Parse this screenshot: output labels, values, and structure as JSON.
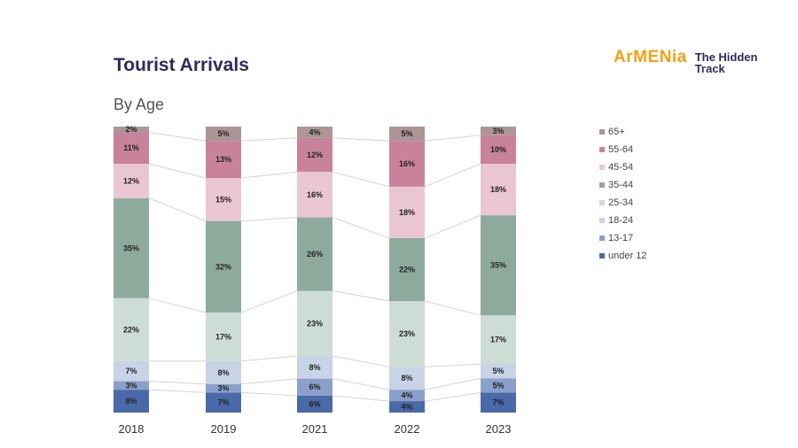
{
  "page": {
    "title": "Tourist Arrivals",
    "subtitle": "By Age",
    "logo_text": "ArMENia",
    "logo_tagline": "The Hidden Track"
  },
  "chart_data": {
    "type": "bar",
    "stacked": true,
    "title": "Tourist Arrivals",
    "subtitle": "By Age",
    "categories": [
      "2018",
      "2019",
      "2021",
      "2022",
      "2023"
    ],
    "ylim": [
      0,
      100
    ],
    "grid": false,
    "legend_position": "right",
    "series": [
      {
        "name": "under 12",
        "color": "#4a69a8",
        "values": [
          8,
          7,
          6,
          4,
          7
        ]
      },
      {
        "name": "13-17",
        "color": "#8aa0ca",
        "values": [
          3,
          3,
          6,
          4,
          5
        ]
      },
      {
        "name": "18-24",
        "color": "#c8d3e6",
        "values": [
          7,
          8,
          8,
          8,
          5
        ]
      },
      {
        "name": "25-34",
        "color": "#cddcd5",
        "values": [
          22,
          17,
          23,
          23,
          17
        ]
      },
      {
        "name": "35-44",
        "color": "#8eaa9d",
        "values": [
          35,
          32,
          26,
          22,
          35
        ]
      },
      {
        "name": "45-54",
        "color": "#eac6d2",
        "values": [
          12,
          15,
          16,
          18,
          18
        ]
      },
      {
        "name": "55-64",
        "color": "#c9829c",
        "values": [
          11,
          13,
          12,
          16,
          10
        ]
      },
      {
        "name": "65+",
        "color": "#ac9595",
        "values": [
          2,
          5,
          4,
          5,
          3
        ]
      }
    ]
  }
}
